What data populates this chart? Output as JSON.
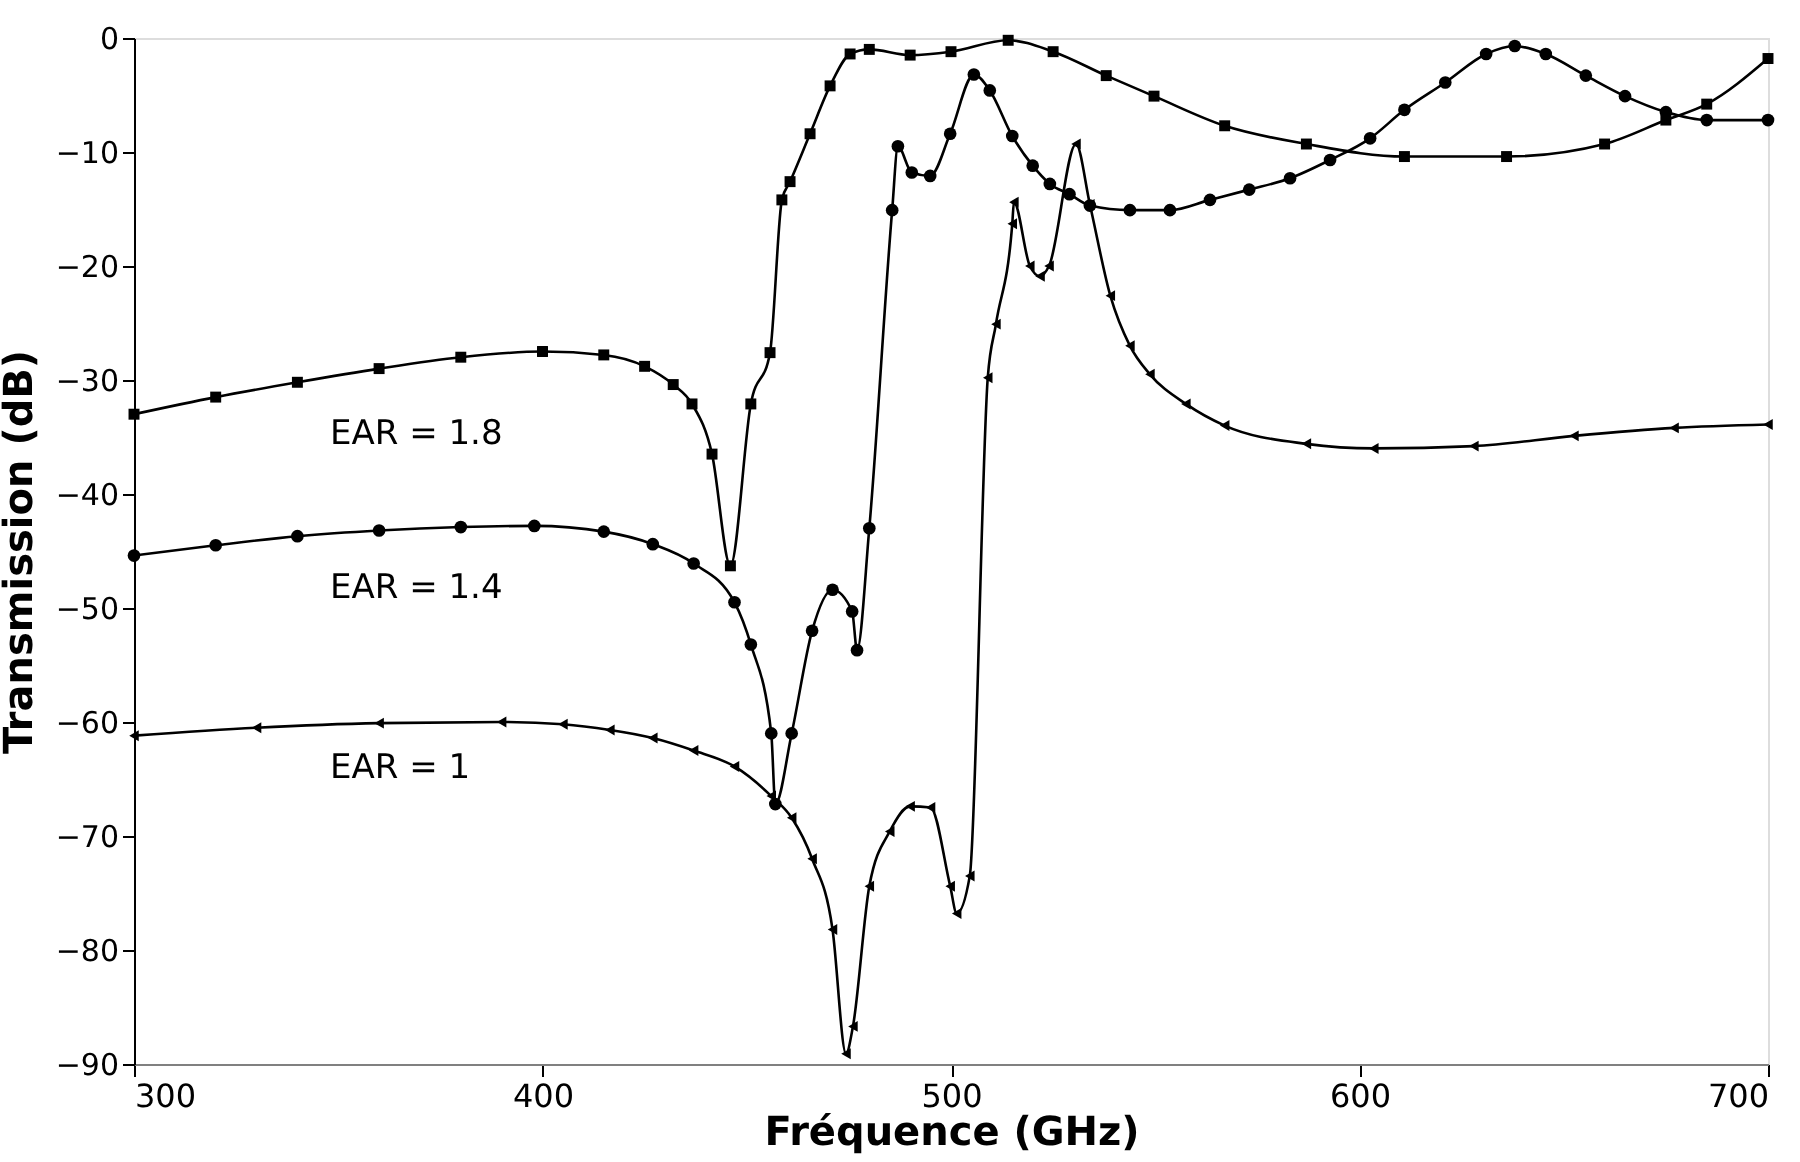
{
  "chart_data": {
    "type": "line",
    "xlabel": "Fréquence (GHz)",
    "ylabel": "Transmission (dB)",
    "xlim": [
      300,
      700
    ],
    "xticks": [
      300,
      400,
      500,
      600,
      700
    ],
    "ylim": [
      -90,
      0
    ],
    "yticks": [
      -90,
      -80,
      -70,
      -60,
      -50,
      -40,
      -30,
      -20,
      -10,
      0
    ],
    "grid": false,
    "series": [
      {
        "name": "EAR = 1.8",
        "color": "#000000",
        "marker": "square",
        "x": [
          300,
          320,
          340,
          360,
          380,
          400,
          415,
          425,
          432,
          436.6,
          441.5,
          446,
          451,
          455.7,
          458.6,
          460.6,
          465.5,
          470.4,
          475.3,
          480,
          490,
          500,
          514,
          525,
          538,
          549.7,
          567,
          587,
          611,
          636,
          660,
          675,
          685,
          700
        ],
        "values": [
          -33,
          -31.5,
          -30.2,
          -29,
          -28,
          -27.5,
          -27.8,
          -28.8,
          -30.4,
          -32.1,
          -36.5,
          -46.3,
          -32.1,
          -27.6,
          -14.2,
          -12.6,
          -8.4,
          -4.2,
          -1.4,
          -1.0,
          -1.5,
          -1.2,
          -0.2,
          -1.2,
          -3.3,
          -5.1,
          -7.7,
          -9.3,
          -10.4,
          -10.4,
          -9.3,
          -7.2,
          -5.8,
          -1.8
        ]
      },
      {
        "name": "EAR = 1.4",
        "color": "#000000",
        "marker": "circle",
        "x": [
          300,
          320,
          340,
          360,
          380,
          398,
          415,
          427,
          437,
          447,
          451,
          456,
          457,
          461,
          466,
          471,
          475.8,
          477,
          480,
          485.6,
          487,
          490.4,
          494.9,
          499.8,
          505.6,
          509.5,
          515,
          520,
          524.2,
          529,
          534,
          543.8,
          553.6,
          563.4,
          573,
          583,
          592.8,
          602.6,
          611,
          621,
          631,
          638,
          645.6,
          655.4,
          665,
          675,
          685,
          700
        ],
        "values": [
          -45.4,
          -44.5,
          -43.7,
          -43.2,
          -42.9,
          -42.8,
          -43.3,
          -44.4,
          -46.1,
          -49.5,
          -53.2,
          -61,
          -67.2,
          -61,
          -52,
          -48.4,
          -50.3,
          -53.7,
          -43,
          -15.1,
          -9.5,
          -11.8,
          -12.1,
          -8.4,
          -3.2,
          -4.6,
          -8.6,
          -11.2,
          -12.8,
          -13.7,
          -14.7,
          -15.1,
          -15.1,
          -14.2,
          -13.3,
          -12.3,
          -10.7,
          -8.8,
          -6.3,
          -3.9,
          -1.4,
          -0.7,
          -1.4,
          -3.3,
          -5.1,
          -6.5,
          -7.2,
          -7.2
        ]
      },
      {
        "name": "EAR = 1",
        "color": "#000000",
        "marker": "triangle",
        "x": [
          300,
          330,
          360,
          390,
          405,
          416.5,
          427,
          437,
          447,
          456,
          461,
          466,
          471,
          474.3,
          476,
          480,
          485,
          490,
          495,
          499.8,
          501.4,
          504.6,
          509,
          511,
          515,
          515.4,
          519.3,
          521.8,
          524,
          530.6,
          534,
          539,
          543.8,
          548.7,
          557.5,
          567,
          587,
          603.5,
          628,
          652.5,
          677,
          700
        ],
        "values": [
          -61.2,
          -60.5,
          -60.1,
          -60,
          -60.2,
          -60.7,
          -61.4,
          -62.5,
          -63.9,
          -66.5,
          -68.4,
          -72,
          -78.2,
          -89.1,
          -86.7,
          -74.4,
          -69.6,
          -67.4,
          -67.5,
          -74.4,
          -76.8,
          -73.5,
          -29.8,
          -25.1,
          -16.3,
          -14.4,
          -20,
          -20.9,
          -20,
          -9.3,
          -14.6,
          -22.6,
          -27,
          -29.5,
          -32.1,
          -34,
          -35.6,
          -36,
          -35.8,
          -34.9,
          -34.2,
          -33.9
        ]
      }
    ]
  }
}
